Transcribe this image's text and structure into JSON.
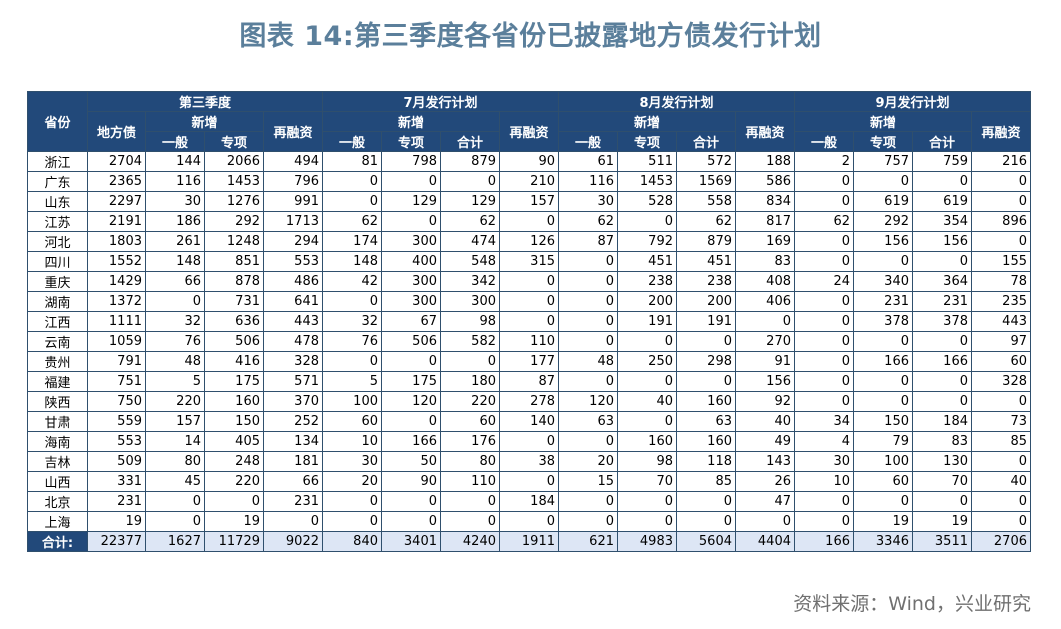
{
  "title": "图表 14:第三季度各省份已披露地方债发行计划",
  "source": "资料来源：Wind，兴业研究",
  "table": {
    "province_header": "省份",
    "groups": [
      "第三季度",
      "7月发行计划",
      "8月发行计划",
      "9月发行计划"
    ],
    "q3_sub": {
      "local_debt": "地方债",
      "new": "新增",
      "general": "一般",
      "special": "专项",
      "refinance": "再融资"
    },
    "month_sub": {
      "new": "新增",
      "general": "一般",
      "special": "专项",
      "total": "合计",
      "refinance": "再融资"
    },
    "rows": [
      [
        "浙江",
        "2704",
        "144",
        "2066",
        "494",
        "81",
        "798",
        "879",
        "90",
        "61",
        "511",
        "572",
        "188",
        "2",
        "757",
        "759",
        "216"
      ],
      [
        "广东",
        "2365",
        "116",
        "1453",
        "796",
        "0",
        "0",
        "0",
        "210",
        "116",
        "1453",
        "1569",
        "586",
        "0",
        "0",
        "0",
        "0"
      ],
      [
        "山东",
        "2297",
        "30",
        "1276",
        "991",
        "0",
        "129",
        "129",
        "157",
        "30",
        "528",
        "558",
        "834",
        "0",
        "619",
        "619",
        "0"
      ],
      [
        "江苏",
        "2191",
        "186",
        "292",
        "1713",
        "62",
        "0",
        "62",
        "0",
        "62",
        "0",
        "62",
        "817",
        "62",
        "292",
        "354",
        "896"
      ],
      [
        "河北",
        "1803",
        "261",
        "1248",
        "294",
        "174",
        "300",
        "474",
        "126",
        "87",
        "792",
        "879",
        "169",
        "0",
        "156",
        "156",
        "0"
      ],
      [
        "四川",
        "1552",
        "148",
        "851",
        "553",
        "148",
        "400",
        "548",
        "315",
        "0",
        "451",
        "451",
        "83",
        "0",
        "0",
        "0",
        "155"
      ],
      [
        "重庆",
        "1429",
        "66",
        "878",
        "486",
        "42",
        "300",
        "342",
        "0",
        "0",
        "238",
        "238",
        "408",
        "24",
        "340",
        "364",
        "78"
      ],
      [
        "湖南",
        "1372",
        "0",
        "731",
        "641",
        "0",
        "300",
        "300",
        "0",
        "0",
        "200",
        "200",
        "406",
        "0",
        "231",
        "231",
        "235"
      ],
      [
        "江西",
        "1111",
        "32",
        "636",
        "443",
        "32",
        "67",
        "98",
        "0",
        "0",
        "191",
        "191",
        "0",
        "0",
        "378",
        "378",
        "443"
      ],
      [
        "云南",
        "1059",
        "76",
        "506",
        "478",
        "76",
        "506",
        "582",
        "110",
        "0",
        "0",
        "0",
        "270",
        "0",
        "0",
        "0",
        "97"
      ],
      [
        "贵州",
        "791",
        "48",
        "416",
        "328",
        "0",
        "0",
        "0",
        "177",
        "48",
        "250",
        "298",
        "91",
        "0",
        "166",
        "166",
        "60"
      ],
      [
        "福建",
        "751",
        "5",
        "175",
        "571",
        "5",
        "175",
        "180",
        "87",
        "0",
        "0",
        "0",
        "156",
        "0",
        "0",
        "0",
        "328"
      ],
      [
        "陕西",
        "750",
        "220",
        "160",
        "370",
        "100",
        "120",
        "220",
        "278",
        "120",
        "40",
        "160",
        "92",
        "0",
        "0",
        "0",
        "0"
      ],
      [
        "甘肃",
        "559",
        "157",
        "150",
        "252",
        "60",
        "0",
        "60",
        "140",
        "63",
        "0",
        "63",
        "40",
        "34",
        "150",
        "184",
        "73"
      ],
      [
        "海南",
        "553",
        "14",
        "405",
        "134",
        "10",
        "166",
        "176",
        "0",
        "0",
        "160",
        "160",
        "49",
        "4",
        "79",
        "83",
        "85"
      ],
      [
        "吉林",
        "509",
        "80",
        "248",
        "181",
        "30",
        "50",
        "80",
        "38",
        "20",
        "98",
        "118",
        "143",
        "30",
        "100",
        "130",
        "0"
      ],
      [
        "山西",
        "331",
        "45",
        "220",
        "66",
        "20",
        "90",
        "110",
        "0",
        "15",
        "70",
        "85",
        "26",
        "10",
        "60",
        "70",
        "40"
      ],
      [
        "北京",
        "231",
        "0",
        "0",
        "231",
        "0",
        "0",
        "0",
        "184",
        "0",
        "0",
        "0",
        "47",
        "0",
        "0",
        "0",
        "0"
      ],
      [
        "上海",
        "19",
        "0",
        "19",
        "0",
        "0",
        "0",
        "0",
        "0",
        "0",
        "0",
        "0",
        "0",
        "0",
        "19",
        "19",
        "0"
      ]
    ],
    "total_row": [
      "合计:",
      "22377",
      "1627",
      "11729",
      "9022",
      "840",
      "3401",
      "4240",
      "1911",
      "621",
      "4983",
      "5604",
      "4404",
      "166",
      "3346",
      "3511",
      "2706"
    ]
  }
}
